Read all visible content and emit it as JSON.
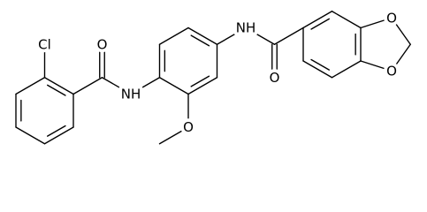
{
  "atoms": {
    "labels": [
      "Cl",
      "O",
      "NH",
      "O",
      "NH",
      "O",
      "O",
      "O"
    ]
  }
}
